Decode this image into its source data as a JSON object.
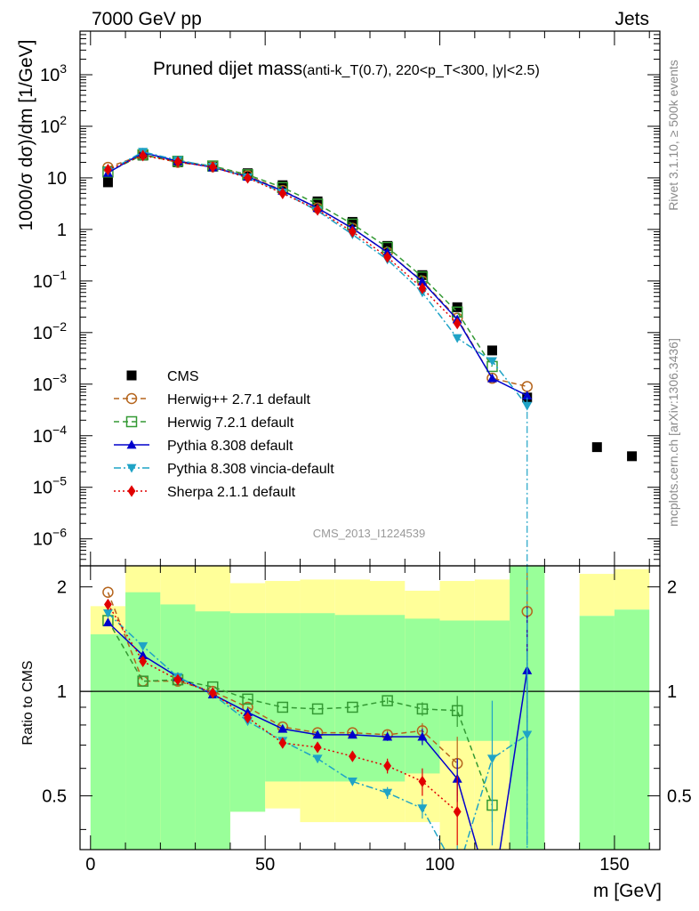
{
  "header": {
    "left": "7000 GeV pp",
    "right": "Jets"
  },
  "side_labels": {
    "top": "Rivet 3.1.10, ≥ 500k events",
    "bottom": "mcplots.cern.ch [arXiv:1306.3436]"
  },
  "watermark": "CMS_2013_I1224539",
  "chart_data": {
    "type": "scatter",
    "title_main": "Pruned dijet mass",
    "title_sub": "(anti-k_T(0.7), 220<p_T<300, |y|<2.5)",
    "xlabel": "m [GeV]",
    "ylabel": "1000/σ dσ)/dm [1/GeV]",
    "ratio_ylabel": "Ratio to CMS",
    "xlim": [
      -3,
      163
    ],
    "ylim": [
      3e-07,
      7000
    ],
    "yscale": "log",
    "ratio_ylim": [
      0.35,
      2.3
    ],
    "x_ticks": [
      0,
      50,
      100,
      150
    ],
    "ratio_ticks": [
      0.5,
      1,
      2
    ],
    "x": [
      5,
      15,
      25,
      35,
      45,
      55,
      65,
      75,
      85,
      95,
      105,
      115,
      125,
      145,
      155
    ],
    "bands": [
      {
        "xmin": 0,
        "xmax": 10,
        "y_lo": 1.46,
        "y_hi": 1.76,
        "g_lo": 0.35,
        "g_hi": 1.46
      },
      {
        "xmin": 10,
        "xmax": 20,
        "y_lo": 0.35,
        "y_hi": 2.3,
        "g_lo": 0.35,
        "g_hi": 1.93
      },
      {
        "xmin": 20,
        "xmax": 30,
        "y_lo": 0.35,
        "y_hi": 2.3,
        "g_lo": 0.35,
        "g_hi": 1.78
      },
      {
        "xmin": 30,
        "xmax": 40,
        "y_lo": 0.35,
        "y_hi": 2.3,
        "g_lo": 0.35,
        "g_hi": 1.7
      },
      {
        "xmin": 40,
        "xmax": 50,
        "y_lo": 0.45,
        "y_hi": 2.05,
        "g_lo": 0.45,
        "g_hi": 1.68
      },
      {
        "xmin": 50,
        "xmax": 60,
        "y_lo": 0.46,
        "y_hi": 2.08,
        "g_lo": 0.55,
        "g_hi": 1.68
      },
      {
        "xmin": 60,
        "xmax": 70,
        "y_lo": 0.42,
        "y_hi": 2.1,
        "g_lo": 0.55,
        "g_hi": 1.68
      },
      {
        "xmin": 70,
        "xmax": 80,
        "y_lo": 0.42,
        "y_hi": 2.1,
        "g_lo": 0.55,
        "g_hi": 1.66
      },
      {
        "xmin": 80,
        "xmax": 90,
        "y_lo": 0.42,
        "y_hi": 2.08,
        "g_lo": 0.55,
        "g_hi": 1.66
      },
      {
        "xmin": 90,
        "xmax": 100,
        "y_lo": 0.42,
        "y_hi": 1.95,
        "g_lo": 0.58,
        "g_hi": 1.62
      },
      {
        "xmin": 100,
        "xmax": 110,
        "y_lo": 0.35,
        "y_hi": 2.08,
        "g_lo": 0.72,
        "g_hi": 1.6
      },
      {
        "xmin": 110,
        "xmax": 120,
        "y_lo": 0.35,
        "y_hi": 2.1,
        "g_lo": 0.72,
        "g_hi": 1.6
      },
      {
        "xmin": 120,
        "xmax": 130,
        "y_lo": 0.35,
        "y_hi": 2.3,
        "g_lo": 0.35,
        "g_hi": 2.3
      },
      {
        "xmin": 140,
        "xmax": 150,
        "y_lo": 1.65,
        "y_hi": 2.18,
        "g_lo": 0.35,
        "g_hi": 1.65
      },
      {
        "xmin": 150,
        "xmax": 160,
        "y_lo": 1.72,
        "y_hi": 2.25,
        "g_lo": 0.35,
        "g_hi": 1.72
      }
    ],
    "series": [
      {
        "name": "CMS",
        "color": "#000000",
        "marker": "square-filled",
        "line": "none",
        "values": [
          8.2,
          27,
          20,
          16.5,
          12.3,
          7.2,
          3.5,
          1.4,
          0.48,
          0.13,
          0.031,
          0.0045,
          0.00055,
          6e-05,
          4e-05
        ],
        "ratio": []
      },
      {
        "name": "Herwig++ 2.7.1 default",
        "color": "#b5651d",
        "marker": "circle-open",
        "line": "dashed",
        "values": [
          16,
          28,
          20,
          16.5,
          11,
          5.7,
          2.6,
          1.05,
          0.36,
          0.1,
          0.019,
          0.0013,
          0.0009
        ],
        "ratio": [
          1.93,
          1.07,
          1.07,
          1.0,
          0.9,
          0.79,
          0.76,
          0.76,
          0.75,
          0.77,
          0.62,
          null,
          1.7
        ],
        "ratio_err": [
          0,
          0,
          0,
          0,
          0,
          0,
          0,
          0,
          0.02,
          0.04,
          0.12,
          0,
          0.5
        ]
      },
      {
        "name": "Herwig 7.2.1 default",
        "color": "#339933",
        "marker": "square-open",
        "line": "dashed",
        "values": [
          13,
          28,
          21,
          17,
          11.5,
          6.5,
          3.1,
          1.27,
          0.45,
          0.12,
          0.025,
          0.0022
        ],
        "ratio": [
          1.6,
          1.07,
          1.08,
          1.03,
          0.95,
          0.9,
          0.89,
          0.9,
          0.94,
          0.89,
          0.88,
          0.47
        ],
        "ratio_err": [
          0,
          0,
          0,
          0,
          0,
          0,
          0,
          0,
          0.02,
          0.04,
          0.09,
          0.05
        ]
      },
      {
        "name": "Pythia 8.308 default",
        "color": "#0000cc",
        "marker": "triangle-up",
        "line": "solid",
        "values": [
          12.5,
          31,
          21,
          16,
          10.5,
          5.6,
          2.6,
          1.05,
          0.36,
          0.097,
          0.018,
          0.0013,
          0.0006
        ],
        "ratio": [
          1.58,
          1.27,
          1.1,
          0.98,
          0.87,
          0.78,
          0.75,
          0.75,
          0.74,
          0.74,
          0.56,
          0.25,
          1.15
        ],
        "ratio_err": [
          0,
          0,
          0,
          0,
          0,
          0,
          0,
          0,
          0.02,
          0.04,
          0.08,
          0,
          0.6
        ]
      },
      {
        "name": "Pythia 8.308 vincia-default",
        "color": "#1fa3c6",
        "marker": "triangle-down",
        "line": "dashdot",
        "values": [
          13.5,
          32,
          22,
          16.5,
          10.2,
          5.2,
          2.3,
          0.8,
          0.26,
          0.06,
          0.0078,
          0.0028,
          0.00038
        ],
        "ratio": [
          1.68,
          1.35,
          1.1,
          0.98,
          0.82,
          0.72,
          0.64,
          0.55,
          0.51,
          0.46,
          0.3,
          0.64,
          0.75
        ],
        "ratio_err": [
          0,
          0,
          0,
          0,
          0,
          0,
          0,
          0,
          0.02,
          0.03,
          0.05,
          0.3,
          0.5
        ]
      },
      {
        "name": "Sherpa 2.1.1 default",
        "color": "#e00000",
        "marker": "diamond",
        "line": "dotted",
        "values": [
          14.5,
          27,
          20.5,
          16.2,
          10,
          5,
          2.4,
          0.9,
          0.29,
          0.072,
          0.015
        ],
        "ratio": [
          1.78,
          1.22,
          1.08,
          0.99,
          0.84,
          0.71,
          0.69,
          0.65,
          0.61,
          0.55,
          0.45
        ],
        "ratio_err": [
          0,
          0,
          0,
          0,
          0,
          0,
          0,
          0,
          0.03,
          0.05,
          0.12
        ]
      }
    ]
  }
}
